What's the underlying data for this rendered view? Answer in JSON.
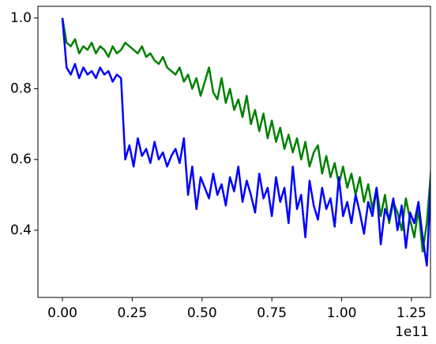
{
  "chart_data": {
    "type": "line",
    "x_offset_label": "1e11",
    "x": [
      0,
      0.015,
      0.03,
      0.045,
      0.06,
      0.075,
      0.09,
      0.105,
      0.12,
      0.135,
      0.15,
      0.165,
      0.18,
      0.195,
      0.21,
      0.225,
      0.24,
      0.255,
      0.27,
      0.285,
      0.3,
      0.315,
      0.33,
      0.345,
      0.36,
      0.375,
      0.39,
      0.405,
      0.42,
      0.435,
      0.45,
      0.465,
      0.48,
      0.495,
      0.51,
      0.525,
      0.54,
      0.555,
      0.57,
      0.585,
      0.6,
      0.615,
      0.63,
      0.645,
      0.66,
      0.675,
      0.69,
      0.705,
      0.72,
      0.735,
      0.75,
      0.765,
      0.78,
      0.795,
      0.81,
      0.825,
      0.84,
      0.855,
      0.87,
      0.885,
      0.9,
      0.915,
      0.93,
      0.945,
      0.96,
      0.975,
      0.99,
      1.005,
      1.02,
      1.035,
      1.05,
      1.065,
      1.08,
      1.095,
      1.11,
      1.125,
      1.14,
      1.155,
      1.17,
      1.185,
      1.2,
      1.215,
      1.23,
      1.245,
      1.26,
      1.275,
      1.29,
      1.305,
      1.32
    ],
    "series": [
      {
        "color": "#008000",
        "values": [
          1.0,
          0.93,
          0.92,
          0.94,
          0.9,
          0.92,
          0.91,
          0.93,
          0.9,
          0.92,
          0.91,
          0.89,
          0.92,
          0.9,
          0.91,
          0.93,
          0.92,
          0.91,
          0.9,
          0.92,
          0.89,
          0.9,
          0.88,
          0.87,
          0.89,
          0.86,
          0.85,
          0.84,
          0.86,
          0.82,
          0.84,
          0.8,
          0.83,
          0.78,
          0.82,
          0.86,
          0.79,
          0.77,
          0.83,
          0.76,
          0.8,
          0.74,
          0.77,
          0.72,
          0.78,
          0.7,
          0.74,
          0.68,
          0.73,
          0.66,
          0.71,
          0.65,
          0.69,
          0.63,
          0.67,
          0.62,
          0.66,
          0.6,
          0.65,
          0.58,
          0.62,
          0.64,
          0.56,
          0.61,
          0.55,
          0.59,
          0.53,
          0.58,
          0.52,
          0.56,
          0.5,
          0.55,
          0.48,
          0.53,
          0.46,
          0.52,
          0.44,
          0.5,
          0.42,
          0.48,
          0.45,
          0.4,
          0.49,
          0.43,
          0.38,
          0.46,
          0.34,
          0.42,
          0.57
        ]
      },
      {
        "color": "#0000ff",
        "values": [
          1.0,
          0.86,
          0.84,
          0.87,
          0.83,
          0.86,
          0.84,
          0.85,
          0.83,
          0.86,
          0.84,
          0.85,
          0.82,
          0.84,
          0.83,
          0.6,
          0.64,
          0.58,
          0.66,
          0.61,
          0.63,
          0.59,
          0.65,
          0.6,
          0.62,
          0.58,
          0.61,
          0.63,
          0.59,
          0.66,
          0.5,
          0.58,
          0.46,
          0.55,
          0.52,
          0.49,
          0.56,
          0.5,
          0.53,
          0.47,
          0.55,
          0.51,
          0.58,
          0.48,
          0.54,
          0.5,
          0.45,
          0.56,
          0.49,
          0.52,
          0.44,
          0.55,
          0.48,
          0.52,
          0.42,
          0.58,
          0.46,
          0.5,
          0.38,
          0.54,
          0.47,
          0.43,
          0.52,
          0.46,
          0.49,
          0.41,
          0.55,
          0.44,
          0.48,
          0.42,
          0.5,
          0.45,
          0.39,
          0.48,
          0.44,
          0.52,
          0.36,
          0.46,
          0.43,
          0.49,
          0.4,
          0.47,
          0.35,
          0.45,
          0.42,
          0.48,
          0.38,
          0.3,
          0.55
        ]
      }
    ],
    "xlim": [
      -0.0877,
      1.318
    ],
    "ylim": [
      0.21,
      1.033
    ],
    "xticks": [
      {
        "value": 0,
        "label": "0.00"
      },
      0.25,
      {
        "value": 0.5,
        "label": "0.50"
      },
      0.75,
      {
        "value": 1,
        "label": "1.00"
      },
      1.25
    ],
    "yticks": [
      0.4,
      0.6,
      0.8,
      {
        "value": 1,
        "label": "1.0"
      }
    ],
    "grid": false
  }
}
